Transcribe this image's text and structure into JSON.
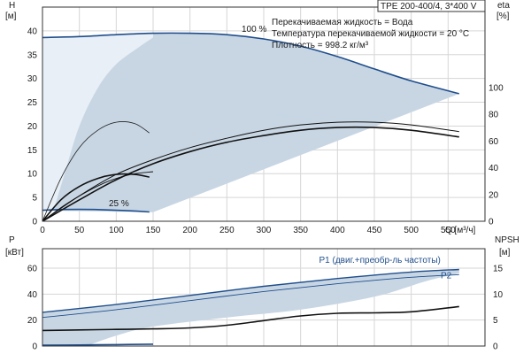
{
  "chart_data": [
    {
      "type": "line",
      "panel": "head-efficiency",
      "title": "TPE 200-400/4, 3*400 V",
      "info_lines": [
        "Перекачиваемая жидкость = Вода",
        "Температура перекачиваемой жидкости = 20 °C",
        "Плотность = 998.2 кг/м³"
      ],
      "ylabel_left": [
        "H",
        "[м]"
      ],
      "ylabel_right": [
        "eta",
        "[%]"
      ],
      "xlabel": "Q [м³/ч]",
      "xlim": [
        0,
        600
      ],
      "x_ticks": [
        0,
        50,
        100,
        150,
        200,
        250,
        300,
        350,
        400,
        450,
        500,
        550
      ],
      "ylim_left": [
        0,
        45
      ],
      "y_ticks_left": [
        0,
        5,
        10,
        15,
        20,
        25,
        30,
        35,
        40
      ],
      "ylim_right": [
        0,
        160
      ],
      "y_ticks_right": [
        0,
        20,
        40,
        60,
        80,
        100
      ],
      "curve_labels": [
        {
          "text": "100 %",
          "x": 270,
          "y": 39.8
        },
        {
          "text": "25 %",
          "x": 90,
          "y": 3.2
        }
      ],
      "colors": {
        "curve": "#1f4e8c",
        "area": "#c9d6e3",
        "area_light": "#e6edf4",
        "eta": "#111111"
      },
      "series": [
        {
          "role": "head-100",
          "axis": "left",
          "x": [
            0,
            50,
            100,
            150,
            200,
            250,
            300,
            350,
            400,
            450,
            500,
            565
          ],
          "y": [
            38.6,
            38.8,
            39.2,
            39.5,
            39.5,
            39.2,
            38.3,
            36.8,
            34.6,
            32.0,
            29.5,
            26.8
          ]
        },
        {
          "role": "head-25",
          "axis": "left",
          "x": [
            0,
            25,
            50,
            75,
            100,
            125,
            145
          ],
          "y": [
            2.3,
            2.45,
            2.5,
            2.45,
            2.3,
            2.15,
            1.95
          ]
        },
        {
          "role": "eta-thin",
          "axis": "right",
          "x": [
            0,
            25,
            50,
            75,
            100,
            125,
            145
          ],
          "y": [
            0,
            32,
            55,
            68,
            74,
            73,
            66
          ]
        },
        {
          "role": "eta-thick",
          "axis": "right",
          "x": [
            0,
            25,
            50,
            75,
            100,
            125,
            145
          ],
          "y": [
            0,
            16,
            26,
            32,
            35,
            35,
            33
          ]
        },
        {
          "role": "eta-total-thick-small",
          "axis": "right",
          "x": [
            0,
            30,
            60,
            90,
            120,
            150
          ],
          "y": [
            0,
            12,
            22,
            30,
            35,
            37
          ]
        },
        {
          "role": "eta-upper",
          "axis": "right",
          "x": [
            0,
            50,
            100,
            150,
            200,
            250,
            300,
            350,
            400,
            450,
            500,
            565
          ],
          "y": [
            0,
            19,
            35,
            46,
            55,
            62,
            68,
            72,
            74,
            74,
            72,
            67
          ]
        },
        {
          "role": "eta-lower",
          "axis": "right",
          "x": [
            0,
            50,
            100,
            150,
            200,
            250,
            300,
            350,
            400,
            450,
            500,
            565
          ],
          "y": [
            0,
            16,
            31,
            43,
            52,
            59,
            64,
            68,
            70,
            70,
            68,
            63
          ]
        }
      ]
    },
    {
      "type": "line",
      "panel": "power-npsh",
      "ylabel_left": [
        "P",
        "[кВт]"
      ],
      "ylabel_right": [
        "NPSH",
        "[м]"
      ],
      "xlim": [
        0,
        600
      ],
      "ylim_left": [
        0,
        75
      ],
      "y_ticks_left": [
        0,
        20,
        40,
        60
      ],
      "ylim_right": [
        0,
        18.75
      ],
      "y_ticks_right": [
        0,
        5,
        10,
        15
      ],
      "curve_labels": [
        {
          "text": "P1 (двиг.+преобр-ль частоты)",
          "x": 375,
          "y": 64
        },
        {
          "text": "P2",
          "x": 540,
          "y": 52
        }
      ],
      "series": [
        {
          "name": "P1 (двиг.+преобр-ль частоты)",
          "axis": "left",
          "x": [
            0,
            100,
            200,
            300,
            400,
            500,
            565
          ],
          "y": [
            26,
            32,
            39,
            46,
            52,
            57,
            59
          ]
        },
        {
          "name": "P2",
          "axis": "left",
          "x": [
            0,
            100,
            200,
            300,
            400,
            500,
            565
          ],
          "y": [
            22,
            28,
            35,
            42,
            48,
            53,
            55
          ]
        },
        {
          "role": "npsh",
          "axis": "right",
          "x": [
            0,
            50,
            100,
            150,
            200,
            250,
            300,
            350,
            400,
            450,
            500,
            565
          ],
          "y": [
            3.0,
            3.1,
            3.2,
            3.3,
            3.5,
            4.0,
            4.9,
            5.8,
            6.3,
            6.4,
            6.6,
            7.6
          ]
        },
        {
          "role": "p-25",
          "axis": "left",
          "x": [
            0,
            50,
            100,
            150
          ],
          "y": [
            0.6,
            0.8,
            1.1,
            1.4
          ]
        }
      ]
    }
  ]
}
